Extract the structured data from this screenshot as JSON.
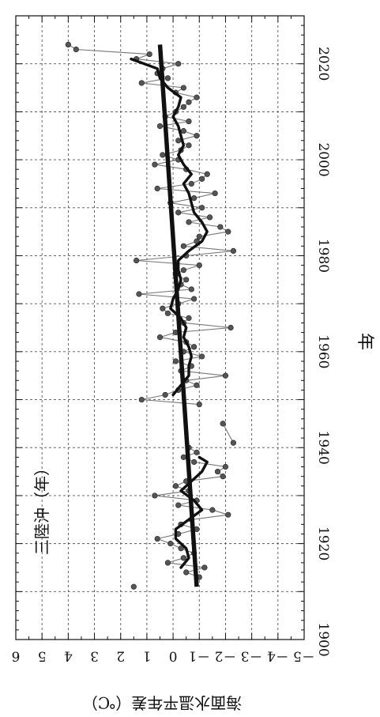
{
  "chart_data": {
    "type": "line",
    "title": "三陸沖（年）",
    "xlabel": "年",
    "ylabel": "海面水温平年差（℃）",
    "xlim": [
      1900,
      2030
    ],
    "ylim": [
      -5,
      6
    ],
    "x_ticks": [
      1900,
      1920,
      1940,
      1960,
      1980,
      2000,
      2020
    ],
    "x_tick_labels": [
      "1900",
      "1920",
      "1940",
      "1960",
      "1980",
      "2000",
      "2020"
    ],
    "y_ticks": [
      6,
      5,
      4,
      3,
      2,
      1,
      0,
      -1,
      -2,
      -3,
      -4,
      -5
    ],
    "y_tick_labels": [
      "6",
      "5",
      "4",
      "3",
      "2",
      "1",
      "0",
      "－1",
      "－2",
      "－3",
      "－4",
      "－5"
    ],
    "grid": true,
    "orientation": "rotated-90-clockwise",
    "series": [
      {
        "role": "annual",
        "color": "#555555",
        "marker": "circle",
        "segments": [
          [
            [
              1911,
              1.5
            ]
          ],
          [
            [
              1913,
              -1.0
            ],
            [
              1914,
              -0.5
            ],
            [
              1915,
              -1.2
            ],
            [
              1916,
              0.2
            ],
            [
              1917,
              -0.4
            ],
            [
              1918,
              -0.8
            ],
            [
              1919,
              -0.3
            ],
            [
              1920,
              0.1
            ],
            [
              1921,
              0.6
            ],
            [
              1922,
              -0.2
            ],
            [
              1923,
              -0.9
            ],
            [
              1924,
              -0.3
            ],
            [
              1925,
              -0.7
            ],
            [
              1926,
              -2.1
            ],
            [
              1927,
              -1.5
            ],
            [
              1928,
              -0.2
            ],
            [
              1929,
              -0.9
            ],
            [
              1930,
              0.7
            ],
            [
              1931,
              -0.6
            ],
            [
              1932,
              -0.1
            ],
            [
              1933,
              -0.5
            ],
            [
              1934,
              -1.9
            ],
            [
              1935,
              -1.7
            ],
            [
              1936,
              -2.0
            ],
            [
              1937,
              -0.8
            ],
            [
              1938,
              -0.4
            ],
            [
              1939,
              -0.9
            ],
            [
              1940,
              -0.6
            ]
          ],
          [
            [
              1945,
              -1.9
            ],
            [
              1941,
              -2.3
            ]
          ],
          [
            [
              1949,
              -1.0
            ],
            [
              1950,
              1.2
            ],
            [
              1951,
              0.3
            ],
            [
              1952,
              -0.2
            ],
            [
              1953,
              -0.9
            ],
            [
              1954,
              -0.5
            ],
            [
              1955,
              -2.0
            ],
            [
              1956,
              -0.3
            ],
            [
              1957,
              -0.7
            ],
            [
              1958,
              -0.1
            ],
            [
              1959,
              -1.1
            ],
            [
              1960,
              -0.4
            ],
            [
              1961,
              -0.8
            ],
            [
              1962,
              -0.5
            ],
            [
              1963,
              0.5
            ],
            [
              1964,
              -0.1
            ],
            [
              1965,
              -2.2
            ],
            [
              1966,
              -0.4
            ],
            [
              1967,
              -0.6
            ],
            [
              1968,
              0.2
            ],
            [
              1969,
              0.4
            ],
            [
              1970,
              -0.2
            ],
            [
              1971,
              -0.8
            ],
            [
              1972,
              1.3
            ],
            [
              1973,
              -0.7
            ],
            [
              1974,
              -0.3
            ],
            [
              1975,
              -0.5
            ],
            [
              1976,
              -0.1
            ],
            [
              1977,
              -0.4
            ],
            [
              1978,
              -1.0
            ],
            [
              1979,
              1.4
            ],
            [
              1980,
              -0.5
            ],
            [
              1981,
              -2.3
            ],
            [
              1982,
              -0.4
            ],
            [
              1983,
              -0.9
            ],
            [
              1984,
              -1.0
            ],
            [
              1985,
              -2.1
            ],
            [
              1986,
              -1.8
            ],
            [
              1987,
              -0.6
            ],
            [
              1988,
              -1.4
            ],
            [
              1989,
              -0.2
            ],
            [
              1990,
              -1.1
            ],
            [
              1991,
              0.1
            ],
            [
              1992,
              -0.8
            ],
            [
              1993,
              -1.6
            ],
            [
              1994,
              0.6
            ],
            [
              1995,
              -0.7
            ],
            [
              1996,
              -1.1
            ],
            [
              1997,
              -1.3
            ],
            [
              1998,
              -0.5
            ],
            [
              1999,
              0.7
            ],
            [
              2000,
              -0.2
            ],
            [
              2001,
              0.4
            ],
            [
              2002,
              -0.3
            ],
            [
              2003,
              -0.6
            ],
            [
              2004,
              -0.2
            ],
            [
              2005,
              -0.9
            ],
            [
              2006,
              -0.4
            ],
            [
              2007,
              0.5
            ],
            [
              2008,
              -0.6
            ],
            [
              2009,
              0.3
            ],
            [
              2010,
              -0.1
            ],
            [
              2011,
              -0.4
            ],
            [
              2012,
              -0.6
            ],
            [
              2013,
              -0.9
            ],
            [
              2014,
              -0.1
            ],
            [
              2015,
              -0.4
            ],
            [
              2016,
              1.2
            ],
            [
              2017,
              0.2
            ],
            [
              2018,
              0.6
            ],
            [
              2019,
              0.4
            ],
            [
              2020,
              -0.2
            ],
            [
              2021,
              1.4
            ],
            [
              2022,
              0.9
            ],
            [
              2023,
              3.7
            ],
            [
              2024,
              4.0
            ]
          ]
        ]
      },
      {
        "role": "5-year running mean",
        "color": "#111111",
        "segments": [
          [
            [
              1915,
              -0.3
            ],
            [
              1917,
              -0.6
            ],
            [
              1919,
              -0.5
            ],
            [
              1921,
              -0.1
            ],
            [
              1923,
              -0.1
            ],
            [
              1925,
              -0.6
            ],
            [
              1927,
              -1.1
            ],
            [
              1929,
              -0.8
            ],
            [
              1931,
              -0.3
            ],
            [
              1933,
              -0.7
            ],
            [
              1935,
              -1.1
            ],
            [
              1937,
              -1.3
            ],
            [
              1938,
              -1.0
            ]
          ],
          [
            [
              1951,
              0.0
            ],
            [
              1953,
              -0.3
            ],
            [
              1955,
              -0.6
            ],
            [
              1957,
              -0.6
            ],
            [
              1959,
              -0.7
            ],
            [
              1961,
              -0.6
            ],
            [
              1963,
              -0.4
            ],
            [
              1965,
              -0.5
            ],
            [
              1967,
              -0.3
            ],
            [
              1969,
              0.1
            ],
            [
              1971,
              0.0
            ],
            [
              1973,
              -0.2
            ],
            [
              1975,
              -0.3
            ],
            [
              1977,
              -0.2
            ],
            [
              1979,
              -0.2
            ],
            [
              1981,
              -0.6
            ],
            [
              1983,
              -1.1
            ],
            [
              1985,
              -1.3
            ],
            [
              1987,
              -1.1
            ],
            [
              1989,
              -0.8
            ],
            [
              1991,
              -0.7
            ],
            [
              1993,
              -0.6
            ],
            [
              1995,
              -0.4
            ],
            [
              1997,
              -0.7
            ],
            [
              1999,
              -0.4
            ],
            [
              2001,
              -0.2
            ],
            [
              2003,
              -0.4
            ],
            [
              2005,
              -0.3
            ],
            [
              2007,
              -0.2
            ],
            [
              2009,
              0.0
            ],
            [
              2011,
              -0.2
            ],
            [
              2013,
              -0.3
            ],
            [
              2015,
              0.2
            ],
            [
              2017,
              0.5
            ],
            [
              2019,
              0.6
            ],
            [
              2021,
              1.6
            ]
          ]
        ]
      },
      {
        "role": "trend",
        "color": "#111111",
        "points": [
          [
            1911,
            -0.9
          ],
          [
            2024,
            0.5
          ]
        ]
      }
    ]
  }
}
